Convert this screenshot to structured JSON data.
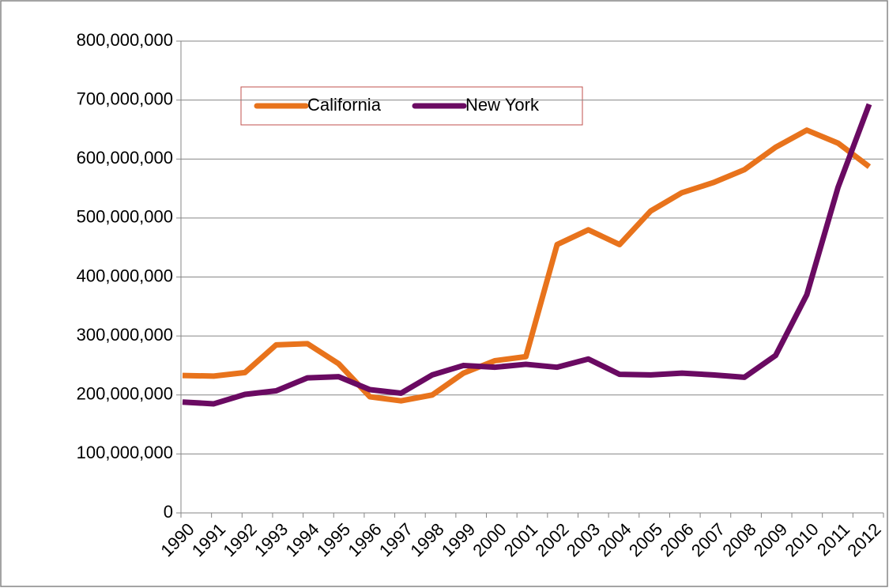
{
  "chart_data": {
    "type": "line",
    "categories": [
      "1990",
      "1991",
      "1992",
      "1993",
      "1994",
      "1995",
      "1996",
      "1997",
      "1998",
      "1999",
      "2000",
      "2001",
      "2002",
      "2003",
      "2004",
      "2005",
      "2006",
      "2007",
      "2008",
      "2009",
      "2010",
      "2011",
      "2012"
    ],
    "series": [
      {
        "name": "California",
        "color": "#e8731c",
        "values": [
          233000000,
          232000000,
          238000000,
          285000000,
          287000000,
          253000000,
          197000000,
          190000000,
          200000000,
          237000000,
          258000000,
          265000000,
          455000000,
          480000000,
          455000000,
          512000000,
          543000000,
          560000000,
          582000000,
          620000000,
          649000000,
          627000000,
          587000000
        ]
      },
      {
        "name": "New York",
        "color": "#6a0a62",
        "values": [
          188000000,
          185000000,
          201000000,
          207000000,
          229000000,
          231000000,
          209000000,
          203000000,
          234000000,
          250000000,
          247000000,
          252000000,
          247000000,
          261000000,
          235000000,
          234000000,
          237000000,
          234000000,
          230000000,
          267000000,
          370000000,
          552000000,
          693000000
        ]
      }
    ],
    "ylim": [
      0,
      800000000
    ],
    "yticks": [
      0,
      {
        "value": 100000000,
        "label": "100,000,000"
      },
      {
        "value": 200000000,
        "label": "200,000,000"
      },
      {
        "value": 300000000,
        "label": "300,000,000"
      },
      {
        "value": 400000000,
        "label": "400,000,000"
      },
      {
        "value": 500000000,
        "label": "500,000,000"
      },
      {
        "value": 600000000,
        "label": "600,000,000"
      },
      {
        "value": 700000000,
        "label": "700,000,000"
      },
      {
        "value": 800000000,
        "label": "800,000,000"
      }
    ],
    "grid": true
  }
}
